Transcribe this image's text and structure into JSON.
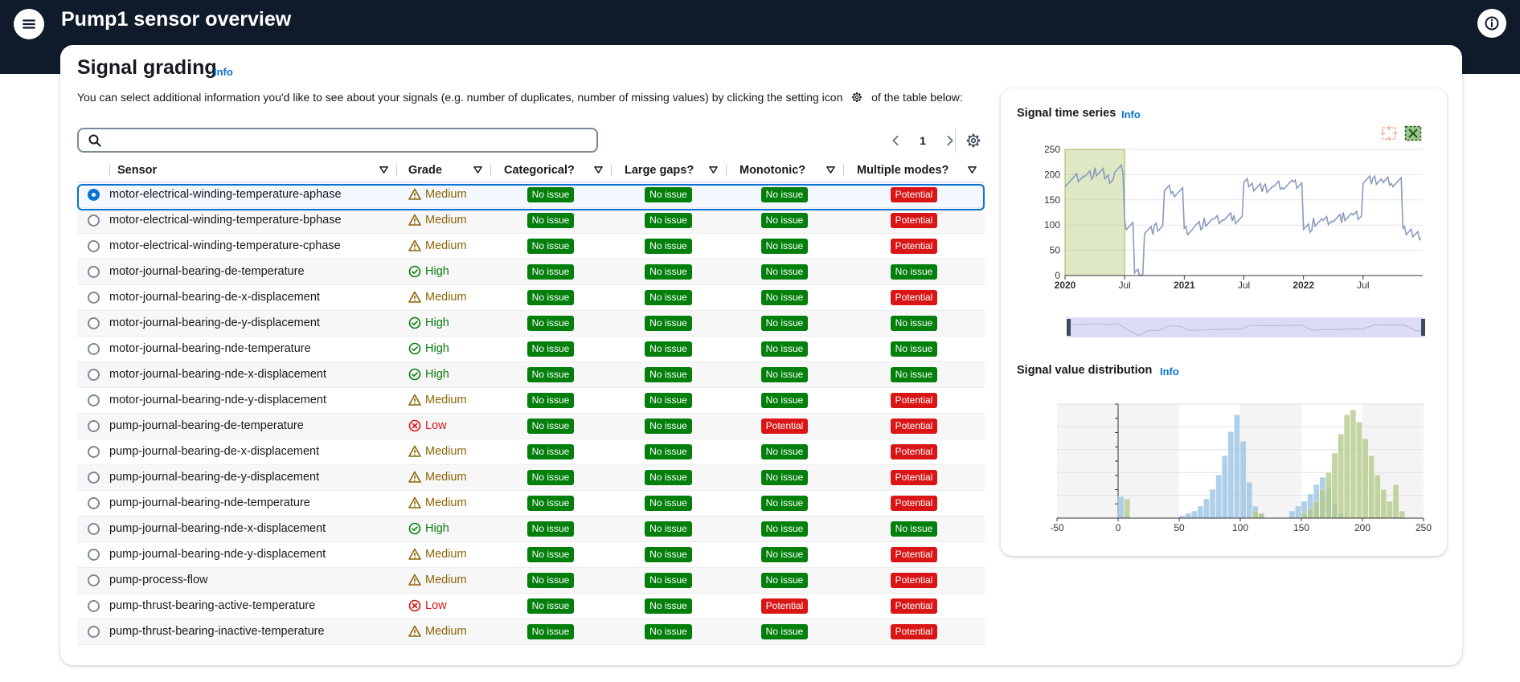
{
  "app": {
    "title": "Pump1 sensor overview",
    "menu_icon": "hamburger-menu-icon",
    "info_icon": "info-circle-icon"
  },
  "grading": {
    "heading": "Signal grading",
    "info": "Info",
    "description_before": "You can select additional information you'd like to see about your signals (e.g. number of duplicates, number of missing values) by clicking the setting icon",
    "description_after": "of the table below:",
    "search_placeholder": "",
    "search_value": "",
    "page": "1"
  },
  "table": {
    "columns": [
      "Sensor",
      "Grade",
      "Categorical?",
      "Large gaps?",
      "Monotonic?",
      "Multiple modes?"
    ],
    "rows": [
      {
        "sensor": "motor-electrical-winding-temperature-aphase",
        "grade": "Medium",
        "categorical": "No issue",
        "gaps": "No issue",
        "monotonic": "No issue",
        "modes": "Potential",
        "selected": true
      },
      {
        "sensor": "motor-electrical-winding-temperature-bphase",
        "grade": "Medium",
        "categorical": "No issue",
        "gaps": "No issue",
        "monotonic": "No issue",
        "modes": "Potential"
      },
      {
        "sensor": "motor-electrical-winding-temperature-cphase",
        "grade": "Medium",
        "categorical": "No issue",
        "gaps": "No issue",
        "monotonic": "No issue",
        "modes": "Potential"
      },
      {
        "sensor": "motor-journal-bearing-de-temperature",
        "grade": "High",
        "categorical": "No issue",
        "gaps": "No issue",
        "monotonic": "No issue",
        "modes": "No issue"
      },
      {
        "sensor": "motor-journal-bearing-de-x-displacement",
        "grade": "Medium",
        "categorical": "No issue",
        "gaps": "No issue",
        "monotonic": "No issue",
        "modes": "Potential"
      },
      {
        "sensor": "motor-journal-bearing-de-y-displacement",
        "grade": "High",
        "categorical": "No issue",
        "gaps": "No issue",
        "monotonic": "No issue",
        "modes": "No issue"
      },
      {
        "sensor": "motor-journal-bearing-nde-temperature",
        "grade": "High",
        "categorical": "No issue",
        "gaps": "No issue",
        "monotonic": "No issue",
        "modes": "No issue"
      },
      {
        "sensor": "motor-journal-bearing-nde-x-displacement",
        "grade": "High",
        "categorical": "No issue",
        "gaps": "No issue",
        "monotonic": "No issue",
        "modes": "No issue"
      },
      {
        "sensor": "motor-journal-bearing-nde-y-displacement",
        "grade": "Medium",
        "categorical": "No issue",
        "gaps": "No issue",
        "monotonic": "No issue",
        "modes": "Potential"
      },
      {
        "sensor": "pump-journal-bearing-de-temperature",
        "grade": "Low",
        "categorical": "No issue",
        "gaps": "No issue",
        "monotonic": "Potential",
        "modes": "Potential"
      },
      {
        "sensor": "pump-journal-bearing-de-x-displacement",
        "grade": "Medium",
        "categorical": "No issue",
        "gaps": "No issue",
        "monotonic": "No issue",
        "modes": "Potential"
      },
      {
        "sensor": "pump-journal-bearing-de-y-displacement",
        "grade": "Medium",
        "categorical": "No issue",
        "gaps": "No issue",
        "monotonic": "No issue",
        "modes": "Potential"
      },
      {
        "sensor": "pump-journal-bearing-nde-temperature",
        "grade": "Medium",
        "categorical": "No issue",
        "gaps": "No issue",
        "monotonic": "No issue",
        "modes": "Potential"
      },
      {
        "sensor": "pump-journal-bearing-nde-x-displacement",
        "grade": "High",
        "categorical": "No issue",
        "gaps": "No issue",
        "monotonic": "No issue",
        "modes": "No issue"
      },
      {
        "sensor": "pump-journal-bearing-nde-y-displacement",
        "grade": "Medium",
        "categorical": "No issue",
        "gaps": "No issue",
        "monotonic": "No issue",
        "modes": "Potential"
      },
      {
        "sensor": "pump-process-flow",
        "grade": "Medium",
        "categorical": "No issue",
        "gaps": "No issue",
        "monotonic": "No issue",
        "modes": "Potential"
      },
      {
        "sensor": "pump-thrust-bearing-active-temperature",
        "grade": "Low",
        "categorical": "No issue",
        "gaps": "No issue",
        "monotonic": "Potential",
        "modes": "Potential"
      },
      {
        "sensor": "pump-thrust-bearing-inactive-temperature",
        "grade": "Medium",
        "categorical": "No issue",
        "gaps": "No issue",
        "monotonic": "No issue",
        "modes": "Potential"
      }
    ]
  },
  "timeseries": {
    "title": "Signal time series",
    "info": "Info",
    "y_ticks": [
      "250",
      "200",
      "150",
      "100",
      "50",
      "0"
    ],
    "x_ticks": [
      {
        "label": "2020",
        "bold": true
      },
      {
        "label": "Jul",
        "bold": false
      },
      {
        "label": "2021",
        "bold": true
      },
      {
        "label": "Jul",
        "bold": false
      },
      {
        "label": "2022",
        "bold": true
      },
      {
        "label": "Jul",
        "bold": false
      }
    ]
  },
  "distribution": {
    "title": "Signal value distribution",
    "info": "Info",
    "x_ticks": [
      "-50",
      "0",
      "50",
      "100",
      "150",
      "200",
      "250"
    ]
  },
  "chart_data": [
    {
      "type": "line",
      "title": "Signal time series",
      "xlabel": "",
      "ylabel": "",
      "x_range": [
        "2020-01",
        "2022-12"
      ],
      "ylim": [
        0,
        250
      ],
      "highlighted_range": [
        "2020-01",
        "2020-07"
      ],
      "series": [
        {
          "color": "#8a9bbf",
          "x": [
            "2020-01",
            "2020-02",
            "2020-03",
            "2020-04",
            "2020-05",
            "2020-06",
            "2020-07",
            "2020-08",
            "2020-09",
            "2020-10",
            "2020-11",
            "2020-12",
            "2021-01",
            "2021-02",
            "2021-03",
            "2021-04",
            "2021-05",
            "2021-06",
            "2021-07",
            "2021-08",
            "2021-09",
            "2021-10",
            "2021-11",
            "2021-12",
            "2022-01",
            "2022-02",
            "2022-03",
            "2022-04",
            "2022-05",
            "2022-06",
            "2022-07",
            "2022-08",
            "2022-09",
            "2022-10",
            "2022-11",
            "2022-12"
          ],
          "y": [
            185,
            195,
            200,
            205,
            190,
            210,
            100,
            5,
            90,
            95,
            170,
            165,
            90,
            100,
            105,
            110,
            115,
            112,
            185,
            175,
            172,
            178,
            180,
            182,
            95,
            105,
            108,
            112,
            118,
            120,
            190,
            188,
            186,
            185,
            90,
            80
          ]
        }
      ]
    },
    {
      "type": "bar",
      "title": "Signal value distribution",
      "xlim": [
        -50,
        250
      ],
      "series": [
        {
          "color": "#9cc3e4",
          "x": [
            0,
            5,
            50,
            55,
            60,
            65,
            70,
            75,
            80,
            85,
            90,
            95,
            100,
            105,
            110,
            115,
            140,
            145,
            150,
            155,
            160,
            165,
            170,
            175,
            180
          ],
          "values": [
            18,
            2,
            2,
            4,
            6,
            10,
            16,
            24,
            36,
            52,
            72,
            86,
            64,
            30,
            10,
            4,
            6,
            10,
            14,
            20,
            28,
            34,
            26,
            12,
            4
          ]
        },
        {
          "color": "#b5c98c",
          "x": [
            5,
            110,
            115,
            150,
            155,
            160,
            165,
            170,
            175,
            180,
            185,
            190,
            195,
            200,
            205,
            210,
            215,
            220,
            225,
            230
          ],
          "values": [
            16,
            6,
            4,
            4,
            8,
            14,
            24,
            38,
            54,
            70,
            86,
            90,
            80,
            66,
            52,
            36,
            24,
            14,
            28,
            6
          ]
        }
      ]
    }
  ]
}
